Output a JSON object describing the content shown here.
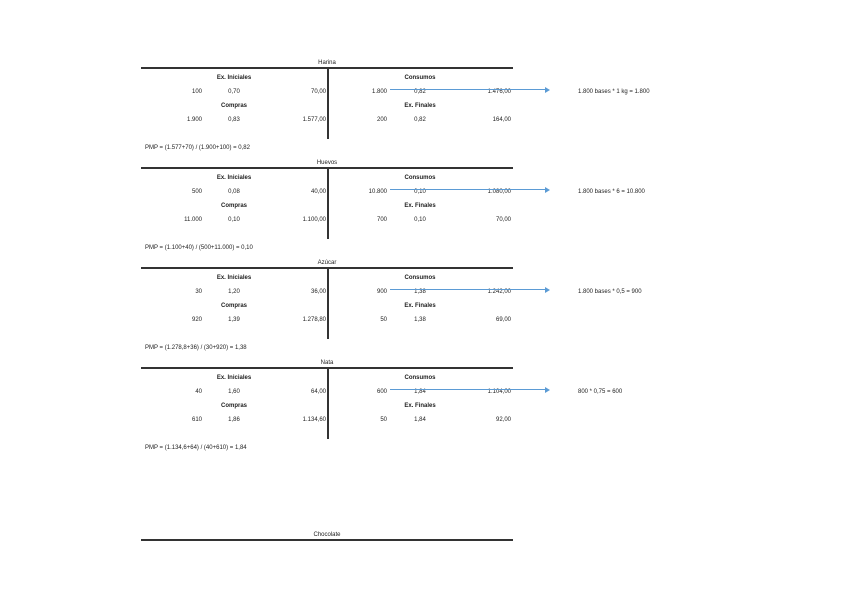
{
  "labels": {
    "ex_iniciales": "Ex. Iniciales",
    "compras": "Compras",
    "consumos": "Consumos",
    "ex_finales": "Ex. Finales"
  },
  "accounts": [
    {
      "title": "Harina",
      "ini": [
        "100",
        "0,70",
        "70,00"
      ],
      "com": [
        "1.900",
        "0,83",
        "1.577,00"
      ],
      "cons": [
        "1.800",
        "0,82",
        "1.476,00"
      ],
      "fin": [
        "200",
        "0,82",
        "164,00"
      ],
      "note": "1.800 bases * 1 kg = 1.800",
      "pmp": "PMP = (1.577+70) / (1.900+100) = 0,82"
    },
    {
      "title": "Huevos",
      "ini": [
        "500",
        "0,08",
        "40,00"
      ],
      "com": [
        "11.000",
        "0,10",
        "1.100,00"
      ],
      "cons": [
        "10.800",
        "0,10",
        "1.080,00"
      ],
      "fin": [
        "700",
        "0,10",
        "70,00"
      ],
      "note": "1.800 bases * 6 = 10.800",
      "pmp": "PMP = (1.100+40) / (500+11.000) = 0,10"
    },
    {
      "title": "Azúcar",
      "ini": [
        "30",
        "1,20",
        "36,00"
      ],
      "com": [
        "920",
        "1,39",
        "1.278,80"
      ],
      "cons": [
        "900",
        "1,38",
        "1.242,00"
      ],
      "fin": [
        "50",
        "1,38",
        "69,00"
      ],
      "note": "1.800 bases * 0,5 = 900",
      "pmp": "PMP = (1.278,8+36) / (30+920) = 1,38"
    },
    {
      "title": "Nata",
      "ini": [
        "40",
        "1,60",
        "64,00"
      ],
      "com": [
        "610",
        "1,86",
        "1.134,60"
      ],
      "cons": [
        "600",
        "1,84",
        "1.104,00"
      ],
      "fin": [
        "50",
        "1,84",
        "92,00"
      ],
      "note": "800 * 0,75 = 600",
      "pmp": "PMP = (1.134,6+64) / (40+610) = 1,84"
    }
  ],
  "last_title": "Chocolate",
  "arrow_color": "#5b9bd5"
}
